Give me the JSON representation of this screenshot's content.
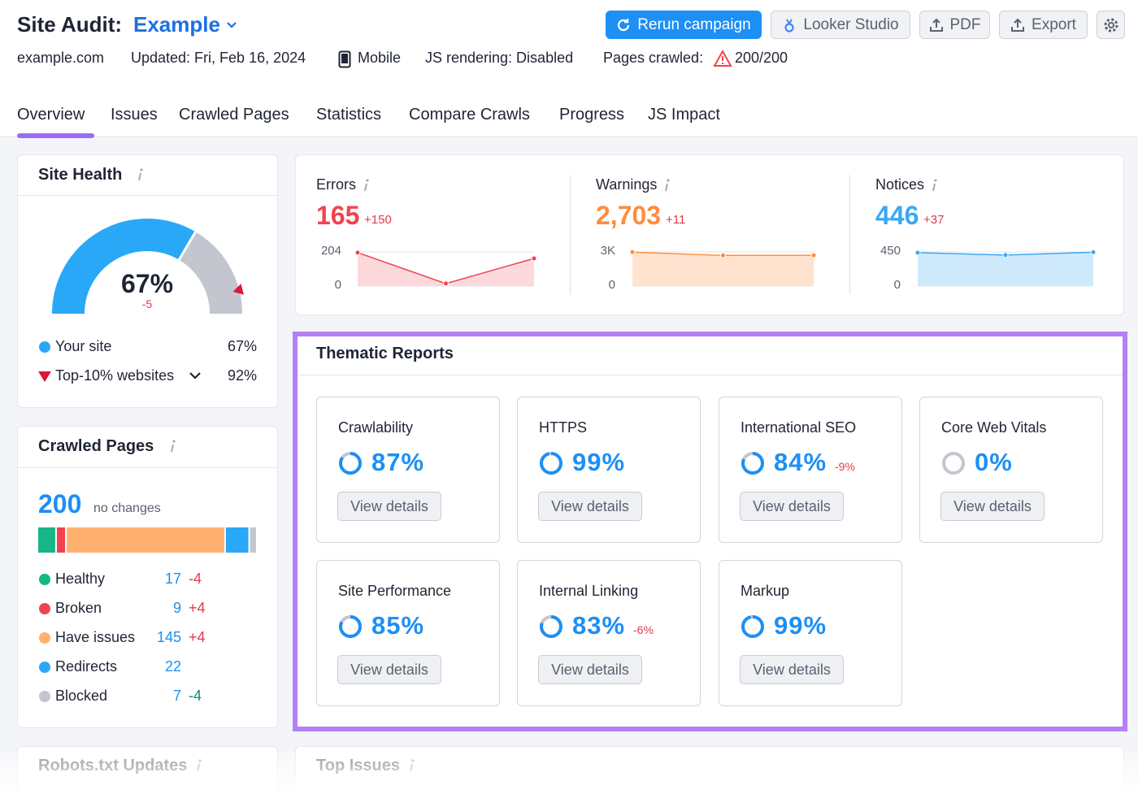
{
  "header": {
    "title": "Site Audit:",
    "project": "Example",
    "domain": "example.com",
    "updated": "Updated: Fri, Feb 16, 2024",
    "device": "Mobile",
    "js_rendering": "JS rendering: Disabled",
    "pages_crawled_label": "Pages crawled:",
    "pages_crawled": "200/200",
    "buttons": [
      "Rerun campaign",
      "Looker Studio",
      "PDF",
      "Export"
    ]
  },
  "tabs": [
    "Overview",
    "Issues",
    "Crawled Pages",
    "Statistics",
    "Compare Crawls",
    "Progress",
    "JS Impact"
  ],
  "site_health": {
    "title": "Site Health",
    "value": "67%",
    "change": "-5",
    "legend": [
      {
        "name": "Your site",
        "value": "67%"
      },
      {
        "name": "Top-10% websites",
        "value": "92%"
      }
    ]
  },
  "issues": [
    {
      "name": "Errors",
      "value": "165",
      "change": "+150",
      "color": "#f2424f",
      "fill": "#fdd9dc",
      "yticks": [
        204,
        0
      ],
      "values": [
        200,
        15,
        165
      ]
    },
    {
      "name": "Warnings",
      "value": "2,703",
      "change": "+11",
      "color": "#ff8c3f",
      "fill": "#ffe3cf",
      "yticks": [
        {
          "value": 3000,
          "label": "3K"
        },
        0
      ],
      "values": [
        2980,
        2692,
        2703
      ]
    },
    {
      "name": "Notices",
      "value": "446",
      "change": "+37",
      "color": "#3aa8f5",
      "fill": "#cfeafc",
      "yticks": [
        450,
        0
      ],
      "values": [
        440,
        409,
        446
      ]
    }
  ],
  "crawled_pages": {
    "title": "Crawled Pages",
    "total": "200",
    "total_note": "no changes",
    "rows": [
      {
        "name": "Healthy",
        "count": "17",
        "change": "-4",
        "color": "#17b686",
        "change_color": "#e03a4a"
      },
      {
        "name": "Broken",
        "count": "9",
        "change": "+4",
        "color": "#f2424f",
        "change_color": "#e03a4a"
      },
      {
        "name": "Have issues",
        "count": "145",
        "change": "+4",
        "color": "#ffb06f",
        "change_color": "#e03a4a"
      },
      {
        "name": "Redirects",
        "count": "22",
        "change": null,
        "color": "#2aa8f8",
        "change_color": null
      },
      {
        "name": "Blocked",
        "count": "7",
        "change": "-4",
        "color": "#c3c6ce",
        "change_color": "#0e8a7c"
      }
    ]
  },
  "thematic_reports": {
    "title": "Thematic Reports",
    "button": "View details",
    "reports": [
      {
        "name": "Crawlability",
        "score": "87%",
        "change": null
      },
      {
        "name": "HTTPS",
        "score": "99%",
        "change": null
      },
      {
        "name": "International SEO",
        "score": "84%",
        "change": "-9%"
      },
      {
        "name": "Core Web Vitals",
        "score": "0%",
        "change": null
      },
      {
        "name": "Site Performance",
        "score": "85%",
        "change": null
      },
      {
        "name": "Internal Linking",
        "score": "83%",
        "change": "-6%"
      },
      {
        "name": "Markup",
        "score": "99%",
        "change": null
      }
    ]
  },
  "footer_cards": [
    "Robots.txt Updates",
    "Top Issues"
  ]
}
